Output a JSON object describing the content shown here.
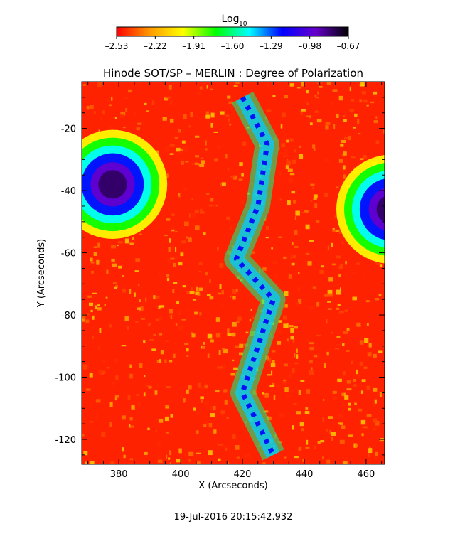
{
  "chart_data": {
    "type": "heatmap",
    "title": "Hinode SOT/SP – MERLIN : Degree of Polarization",
    "xlabel": "X (Arcseconds)",
    "ylabel": "Y (Arcseconds)",
    "xlim": [
      368,
      466
    ],
    "ylim": [
      -128,
      -5
    ],
    "x_ticks": [
      380,
      400,
      420,
      440,
      460
    ],
    "y_ticks": [
      -20,
      -40,
      -60,
      -80,
      -100,
      -120
    ],
    "colorbar": {
      "label": "Log",
      "label_subscript": "10",
      "ticks": [
        "–2.53",
        "–2.22",
        "–1.91",
        "–1.60",
        "–1.29",
        "–0.98",
        "–0.67"
      ],
      "range": [
        -2.53,
        -0.67
      ],
      "colormap": [
        "#ff0000",
        "#ff9900",
        "#ffff00",
        "#00ff00",
        "#00ffff",
        "#0000ff",
        "#6600cc",
        "#000000"
      ]
    },
    "features": [
      {
        "kind": "sunspot",
        "center": [
          378,
          -38
        ],
        "value_log10": -0.8
      },
      {
        "kind": "sunspot",
        "center": [
          468,
          -46
        ],
        "value_log10": -1.0
      },
      {
        "kind": "network-lane",
        "path": [
          [
            420,
            -10
          ],
          [
            428,
            -25
          ],
          [
            425,
            -45
          ],
          [
            418,
            -62
          ],
          [
            430,
            -75
          ],
          [
            425,
            -90
          ],
          [
            420,
            -105
          ],
          [
            430,
            -125
          ]
        ]
      }
    ]
  },
  "footer": {
    "timestamp": "19-Jul-2016 20:15:42.932"
  }
}
